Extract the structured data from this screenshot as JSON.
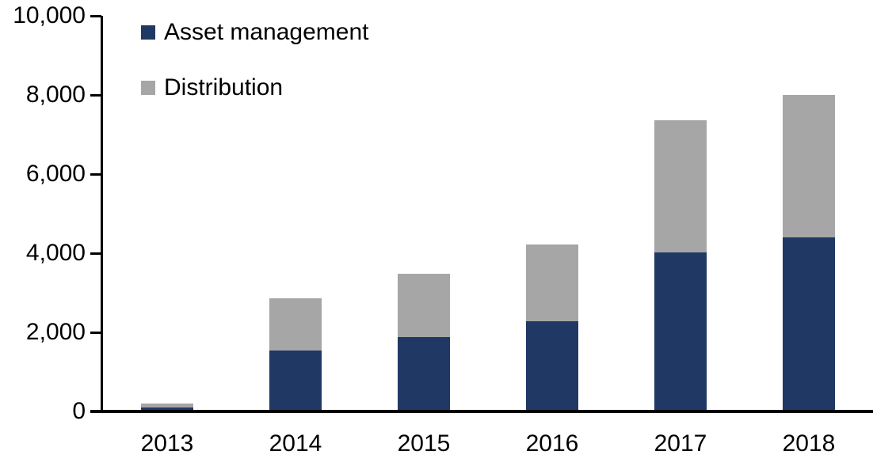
{
  "chart_data": {
    "type": "bar",
    "stacked": true,
    "title": "",
    "xlabel": "",
    "ylabel": "",
    "categories": [
      "2013",
      "2014",
      "2015",
      "2016",
      "2017",
      "2018"
    ],
    "series": [
      {
        "name": "Asset management",
        "color": "#203864",
        "values": [
          100,
          1540,
          1880,
          2290,
          4030,
          4410
        ]
      },
      {
        "name": "Distribution",
        "color": "#A6A6A6",
        "values": [
          100,
          1320,
          1610,
          1930,
          3340,
          3590
        ]
      }
    ],
    "totals": [
      200,
      2860,
      3490,
      4220,
      7370,
      8000
    ],
    "ylim": [
      0,
      10000
    ],
    "ytick_interval": 2000,
    "ytick_labels": [
      "0",
      "2,000",
      "4,000",
      "6,000",
      "8,000",
      "10,000"
    ],
    "legend_position": "top-left",
    "grid": false
  },
  "colors": {
    "background": "#FFFFFF",
    "axis": "#000000",
    "text": "#000000",
    "asset_management": "#203864",
    "distribution": "#A6A6A6"
  }
}
